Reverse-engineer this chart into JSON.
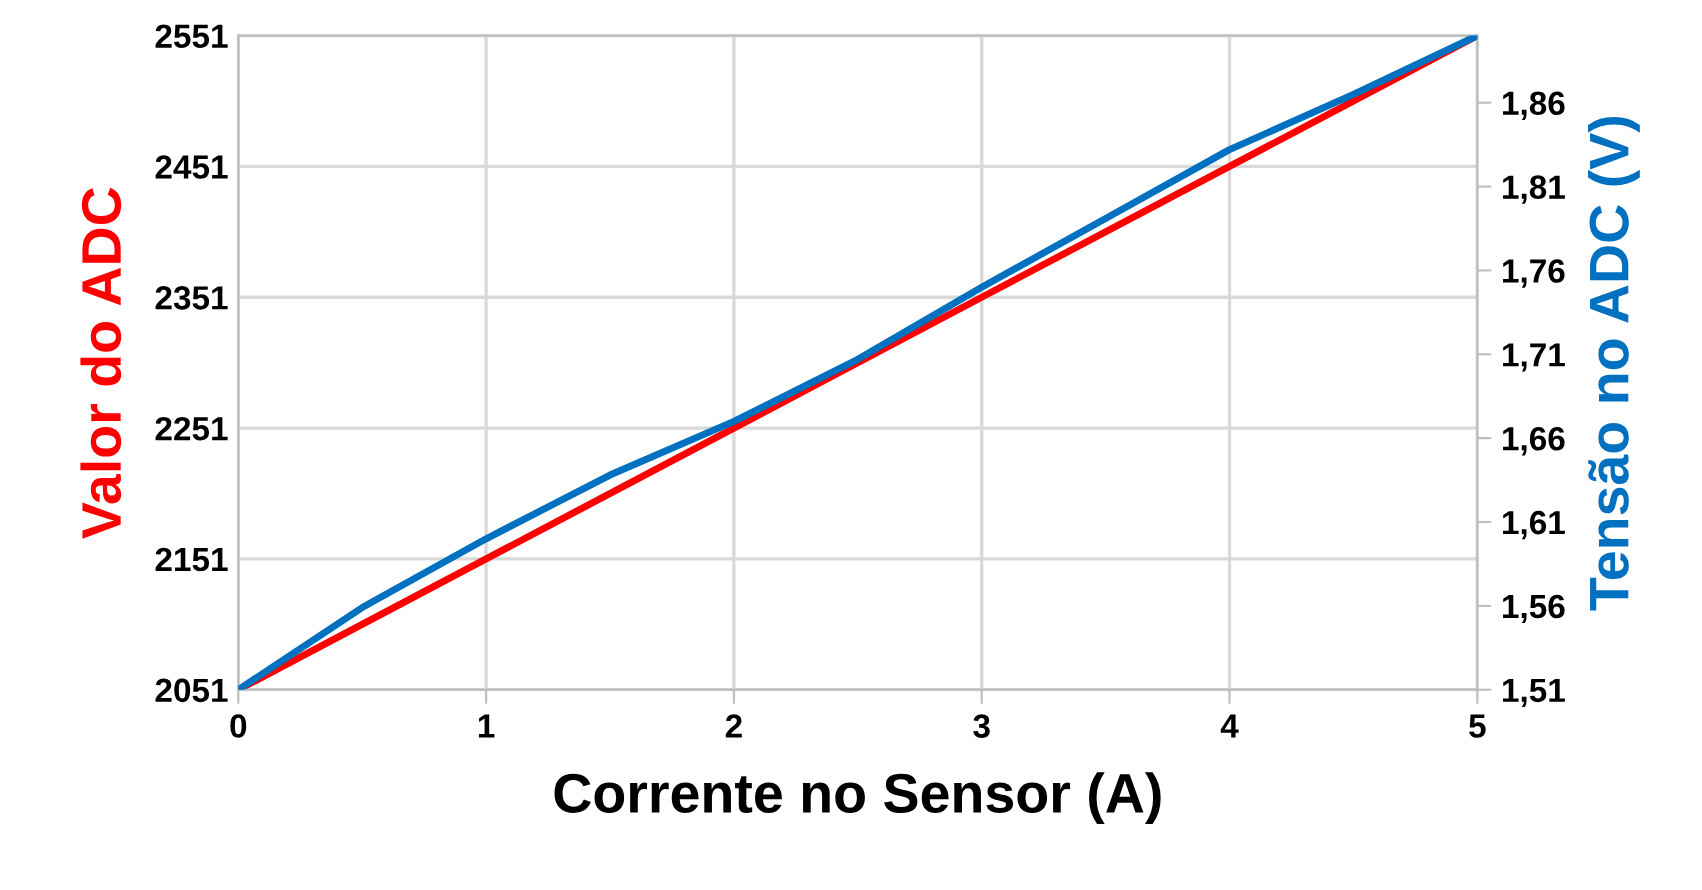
{
  "chart_data": {
    "type": "line",
    "xlabel": "Corrente no Sensor (A)",
    "ylabel": "Valor do ADC",
    "y2label": "Tensão no ADC (V)",
    "series": [
      {
        "color": "#ff0000",
        "x": [
          0,
          1,
          2,
          3,
          4,
          5
        ],
        "values": [
          2051,
          2151,
          2251,
          2351,
          2451,
          2551
        ]
      },
      {
        "color": "#0070c0",
        "axis": "y2",
        "x": [
          0,
          0.5,
          1,
          1.5,
          2,
          2.5,
          3,
          3.5,
          4,
          4.5,
          5
        ],
        "values": [
          1.51,
          1.559,
          1.6,
          1.638,
          1.67,
          1.707,
          1.75,
          1.791,
          1.832,
          1.865,
          1.9
        ]
      }
    ],
    "xlim": [
      0,
      5
    ],
    "xticks": [
      0,
      1,
      2,
      3,
      4,
      5
    ],
    "ylim": [
      2051,
      2551
    ],
    "yticks": [
      2051,
      2151,
      2251,
      2351,
      2451,
      2551
    ],
    "y2lim": [
      1.51,
      1.9
    ],
    "y2ticks": [
      {
        "value": 1.51,
        "label": "1,51"
      },
      {
        "value": 1.56,
        "label": "1,56"
      },
      {
        "value": 1.61,
        "label": "1,61"
      },
      {
        "value": 1.66,
        "label": "1,66"
      },
      {
        "value": 1.71,
        "label": "1,71"
      },
      {
        "value": 1.76,
        "label": "1,76"
      },
      {
        "value": 1.81,
        "label": "1,81"
      },
      {
        "value": 1.86,
        "label": "1,86"
      }
    ],
    "grid": true,
    "line_style": "solid",
    "marker": "none"
  }
}
